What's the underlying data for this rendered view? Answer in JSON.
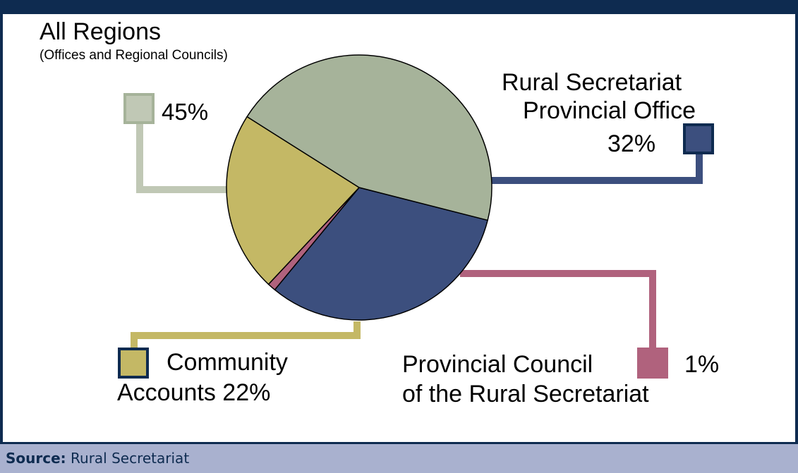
{
  "chart_data": {
    "type": "pie",
    "slices": [
      {
        "key": "all_regions",
        "label": "All Regions",
        "sublabel": "(Offices and Regional Councils)",
        "value": 45,
        "value_label": "45%",
        "color": "#a6b39a"
      },
      {
        "key": "provincial_office",
        "label_lines": [
          "Rural Secretariat",
          "Provincial Office"
        ],
        "value": 32,
        "value_label": "32%",
        "color": "#3c4f7e"
      },
      {
        "key": "provincial_council",
        "label_lines": [
          "Provincial Council",
          "of the Rural Secretariat"
        ],
        "value": 1,
        "value_label": "1%",
        "color": "#b0627d"
      },
      {
        "key": "community_accounts",
        "label_lines": [
          "Community",
          "Accounts 22%"
        ],
        "value": 22,
        "value_label": "22%",
        "color": "#c4b865"
      }
    ]
  },
  "source": {
    "label": "Source:",
    "text": "Rural Secretariat"
  },
  "colors": {
    "frame": "#0e2b50",
    "source_bg": "#a9b1cf",
    "legend_light": "#c0c8b5",
    "legend_border_dark": "#0e2b50"
  }
}
